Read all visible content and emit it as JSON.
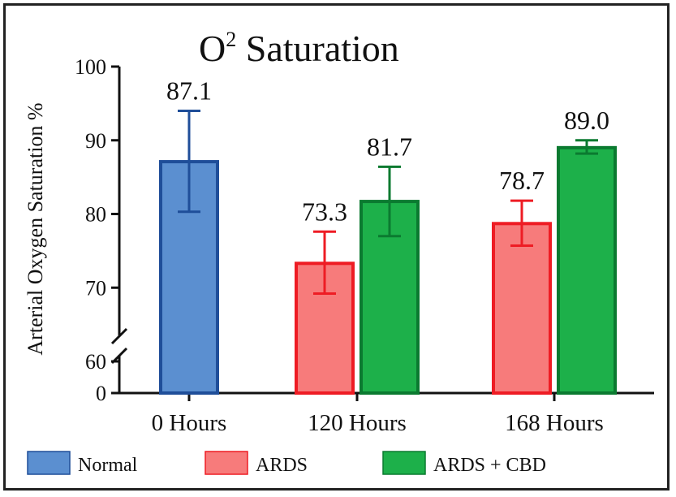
{
  "chart_data": {
    "type": "bar",
    "title": "O",
    "title_superscript": "2",
    "title_suffix": " Saturation",
    "ylabel": "Arterial Oxygen Saturation %",
    "xlabel": "",
    "categories": [
      "0 Hours",
      "120 Hours",
      "168 Hours"
    ],
    "y_ticks": [
      "0",
      "60",
      "70",
      "80",
      "90",
      "100"
    ],
    "y_axis_break": true,
    "ylim_upper": [
      60,
      100
    ],
    "grid": false,
    "legend_position": "bottom",
    "series": [
      {
        "name": "Normal",
        "color": "#5b8fd0",
        "edge_color": "#1f4e99",
        "points": [
          {
            "category": "0 Hours",
            "value": 87.1,
            "label": "87.1",
            "err_low": 80.3,
            "err_high": 94.0
          }
        ]
      },
      {
        "name": "ARDS",
        "color": "#f77b7b",
        "edge_color": "#ee1c24",
        "points": [
          {
            "category": "120 Hours",
            "value": 73.3,
            "label": "73.3",
            "err_low": 69.2,
            "err_high": 77.6
          },
          {
            "category": "168 Hours",
            "value": 78.7,
            "label": "78.7",
            "err_low": 75.7,
            "err_high": 81.8
          }
        ]
      },
      {
        "name": "ARDS + CBD",
        "color": "#1db04a",
        "edge_color": "#0b7a30",
        "points": [
          {
            "category": "120 Hours",
            "value": 81.7,
            "label": "81.7",
            "err_low": 77.0,
            "err_high": 86.4
          },
          {
            "category": "168 Hours",
            "value": 89.0,
            "label": "89.0",
            "err_low": 88.2,
            "err_high": 90.0
          }
        ]
      }
    ]
  }
}
